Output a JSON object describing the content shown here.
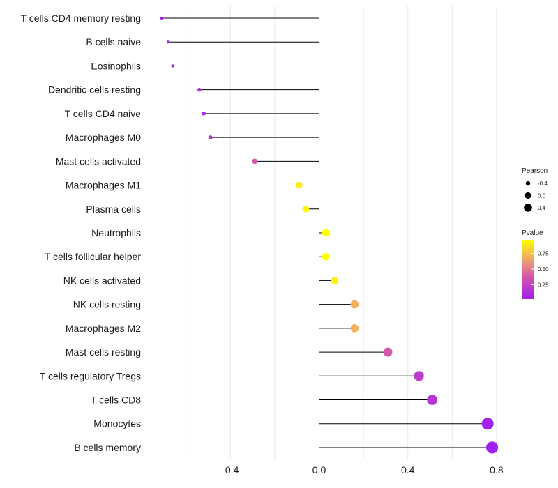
{
  "chart_data": {
    "type": "lollipop",
    "title": "",
    "xlabel": "",
    "ylabel": "",
    "xlim": [
      -0.82,
      0.84
    ],
    "x_ticks": [
      -0.4,
      0.0,
      0.4,
      0.8
    ],
    "x_tick_labels": [
      "-0.4",
      "0.0",
      "0.4",
      "0.8"
    ],
    "x_minor_grid": [
      -0.6,
      -0.2,
      0.2,
      0.6
    ],
    "categories": [
      "T cells CD4 memory resting",
      "B cells naive",
      "Eosinophils",
      "Dendritic cells resting",
      "T cells CD4 naive",
      "Macrophages M0",
      "Mast cells activated",
      "Macrophages M1",
      "Plasma cells",
      "Neutrophils",
      "T cells follicular helper",
      "NK cells activated",
      "NK cells resting",
      "Macrophages M2",
      "Mast cells resting",
      "T cells regulatory  Tregs",
      "T cells CD8",
      "Monocytes",
      "B cells memory"
    ],
    "pearson": [
      -0.71,
      -0.68,
      -0.66,
      -0.54,
      -0.52,
      -0.49,
      -0.29,
      -0.09,
      -0.06,
      0.03,
      0.03,
      0.07,
      0.16,
      0.16,
      0.31,
      0.45,
      0.51,
      0.76,
      0.78
    ],
    "pvalue": [
      0.02,
      0.03,
      0.04,
      0.1,
      0.12,
      0.15,
      0.38,
      0.9,
      0.95,
      0.97,
      0.97,
      0.92,
      0.7,
      0.7,
      0.38,
      0.22,
      0.16,
      0.03,
      0.02
    ],
    "size_legend": {
      "title": "Pearson",
      "values": [
        -0.4,
        0.0,
        0.4
      ],
      "labels": [
        "-0.4",
        "0.0",
        "0.4"
      ]
    },
    "color_legend": {
      "title": "Pvalue",
      "ticks": [
        0.25,
        0.5,
        0.75
      ],
      "tick_labels": [
        "0.25",
        "0.50",
        "0.75"
      ],
      "range": [
        0.02,
        0.97
      ],
      "low_color": "#a020f0",
      "high_color": "#ffff00"
    },
    "stem_color": "#000000",
    "grid_color": "#ebebeb"
  }
}
